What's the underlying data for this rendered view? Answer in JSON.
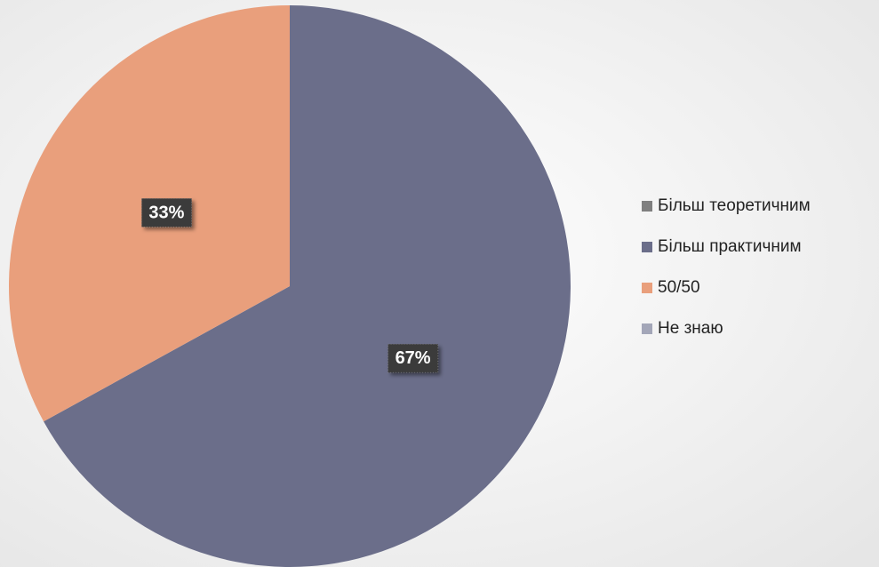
{
  "chart_data": {
    "type": "pie",
    "categories": [
      "Більш теоретичним",
      "Більш практичним",
      "50/50",
      "Не знаю"
    ],
    "values": [
      0,
      67,
      33,
      0
    ],
    "value_labels": [
      null,
      "67%",
      "33%",
      null
    ],
    "colors": [
      "#7f7f7f",
      "#6b6e8a",
      "#e99f7c",
      "#a3a6b8"
    ],
    "legend": "right"
  }
}
